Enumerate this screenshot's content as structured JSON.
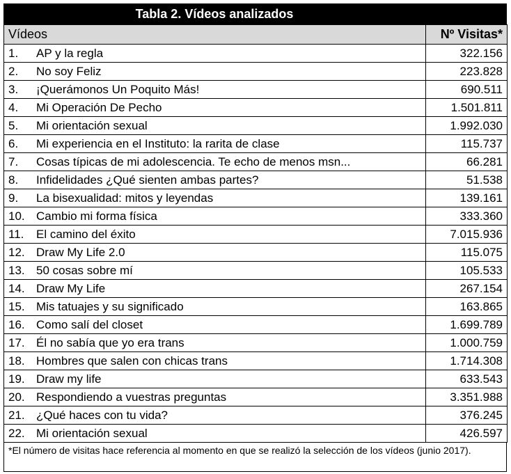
{
  "title": "Tabla 2. Vídeos analizados",
  "table": {
    "header": [
      "Vídeos",
      "Nº Visitas*"
    ],
    "rows": [
      [
        "1.",
        "AP y la regla",
        "322.156"
      ],
      [
        "2.",
        "No soy Feliz",
        "223.828"
      ],
      [
        "3.",
        "¡Querámonos Un Poquito Más!",
        "690.511"
      ],
      [
        "4.",
        "Mi Operación De Pecho",
        "1.501.811"
      ],
      [
        "5.",
        "Mi orientación sexual",
        "1.992.030"
      ],
      [
        "6.",
        "Mi experiencia en el Instituto: la rarita de clase",
        "115.737"
      ],
      [
        "7.",
        "Cosas típicas de mi adolescencia. Te echo de menos msn...",
        "66.281"
      ],
      [
        "8.",
        "Infidelidades ¿Qué sienten ambas partes?",
        "51.538"
      ],
      [
        "9.",
        "La bisexualidad: mitos y leyendas",
        "139.161"
      ],
      [
        "10.",
        "Cambio mi forma física",
        "333.360"
      ],
      [
        "11.",
        "El camino del éxito",
        "7.015.936"
      ],
      [
        "12.",
        "Draw My Life 2.0",
        "115.075"
      ],
      [
        "13.",
        "50 cosas sobre mí",
        "105.533"
      ],
      [
        "14.",
        "Draw My Life",
        "267.154"
      ],
      [
        "15.",
        "Mis tatuajes y su significado",
        "163.865"
      ],
      [
        "16.",
        "Como salí del closet",
        "1.699.789"
      ],
      [
        "17.",
        "Él no sabía que yo era trans",
        "1.000.759"
      ],
      [
        "18.",
        "Hombres que salen con chicas trans",
        "1.714.308"
      ],
      [
        "19.",
        "Draw my life",
        "633.543"
      ],
      [
        "20.",
        "Respondiendo a vuestras preguntas",
        "3.351.988"
      ],
      [
        "21.",
        "¿Qué haces con tu vida?",
        "376.245"
      ],
      [
        "22.",
        "Mi orientación sexual",
        "426.597"
      ]
    ]
  },
  "footnote": "*El número de visitas hace referencia al momento en que se realizó la selección de los vídeos (junio 2017)."
}
